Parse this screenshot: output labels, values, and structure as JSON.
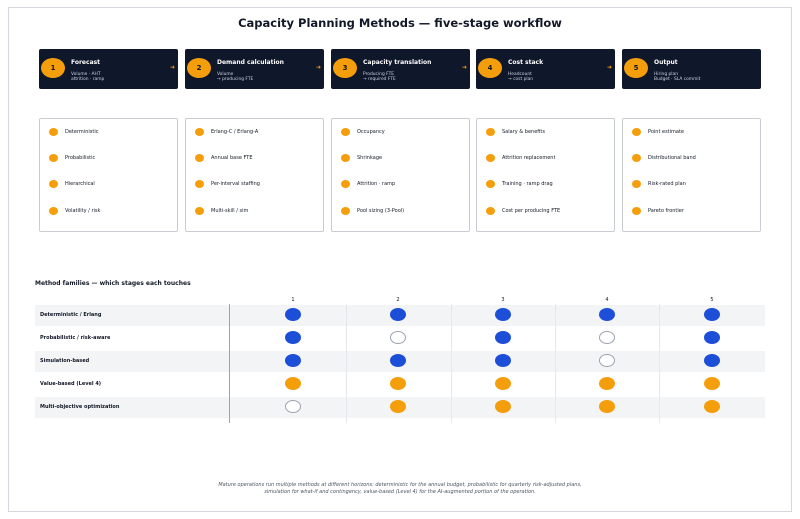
{
  "title": "Capacity Planning Methods — five-stage workflow",
  "arrow_glyph": "➜",
  "stages": [
    {
      "num": "1",
      "name": "Forecast",
      "desc": "Volume · AHT\nattrition · ramp"
    },
    {
      "num": "2",
      "name": "Demand calculation",
      "desc": "Volume\n→ producing FTE"
    },
    {
      "num": "3",
      "name": "Capacity translation",
      "desc": "Producing FTE\n→ required FTE"
    },
    {
      "num": "4",
      "name": "Cost stack",
      "desc": "Headcount\n→ cost plan"
    },
    {
      "num": "5",
      "name": "Output",
      "desc": "Hiring plan\nBudget · SLA commit"
    }
  ],
  "methods": [
    [
      "Deterministic",
      "Probabilistic",
      "Hierarchical",
      "Volatility / risk"
    ],
    [
      "Erlang-C / Erlang-A",
      "Annual base FTE",
      "Per-interval staffing",
      "Multi-skill / sim"
    ],
    [
      "Occupancy",
      "Shrinkage",
      "Attrition · ramp",
      "Pool sizing (3-Pool)"
    ],
    [
      "Salary & benefits",
      "Attrition replacement",
      "Training · ramp drag",
      "Cost per producing FTE"
    ],
    [
      "Point estimate",
      "Distributional band",
      "Risk-rated plan",
      "Pareto frontier"
    ]
  ],
  "matrix": {
    "title": "Method families — which stages each touches",
    "columns": [
      "1",
      "2",
      "3",
      "4",
      "5"
    ],
    "rows": [
      {
        "label": "Deterministic / Erlang",
        "cells": [
          "blue",
          "blue",
          "blue",
          "blue",
          "blue"
        ]
      },
      {
        "label": "Probabilistic / risk-aware",
        "cells": [
          "blue",
          "empty",
          "blue",
          "empty",
          "blue"
        ]
      },
      {
        "label": "Simulation-based",
        "cells": [
          "blue",
          "blue",
          "blue",
          "empty",
          "blue"
        ]
      },
      {
        "label": "Value-based (Level 4)",
        "cells": [
          "orange",
          "orange",
          "orange",
          "orange",
          "orange"
        ]
      },
      {
        "label": "Multi-objective optimization",
        "cells": [
          "empty",
          "orange",
          "orange",
          "orange",
          "orange"
        ]
      }
    ]
  },
  "colors": {
    "stage_bg": "#0f172a",
    "accent": "#f59e0b",
    "blue": "#1d4ed8"
  },
  "footnote": {
    "line1": "Mature operations run multiple methods at different horizons: deterministic for the annual budget, probabilistic for quarterly risk-adjusted plans,",
    "line2": "simulation for what-if and contingency, value-based (Level 4) for the AI-augmented portion of the operation."
  }
}
